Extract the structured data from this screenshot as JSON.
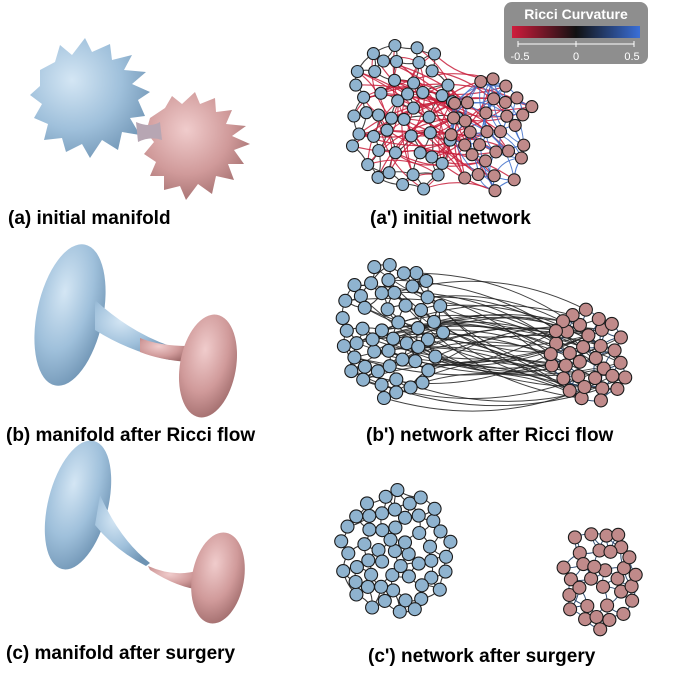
{
  "panels": {
    "a": {
      "caption": "(a) initial manifold"
    },
    "a_prime": {
      "caption": "(a') initial network"
    },
    "b": {
      "caption": "(b) manifold after Ricci flow"
    },
    "b_prime": {
      "caption": "(b') network after Ricci flow"
    },
    "c": {
      "caption": "(c) manifold after surgery"
    },
    "c_prime": {
      "caption": "(c') network after surgery"
    }
  },
  "legend": {
    "title": "Ricci Curvature",
    "ticks": [
      "-0.5",
      "0",
      "0.5"
    ],
    "colors": {
      "negative": "#d01c3c",
      "zero": "#111111",
      "positive": "#3a6fd8"
    }
  },
  "colors": {
    "community_1": "#8fb3cf",
    "community_2": "#c08a8a",
    "edge_neutral": "#222222",
    "edge_negative": "#c8203c",
    "edge_positive": "#3f6fc9",
    "edge_dark_blue": "#1f3d66"
  }
}
